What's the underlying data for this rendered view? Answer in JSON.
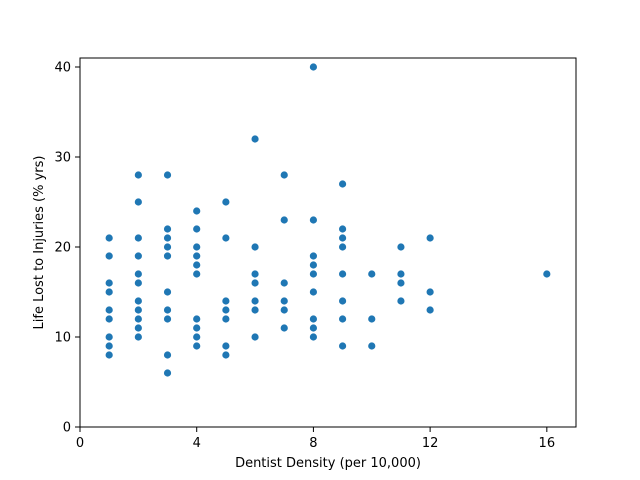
{
  "chart_data": {
    "type": "scatter",
    "title": "",
    "xlabel": "Dentist Density (per 10,000)",
    "ylabel": "Life Lost to Injuries (% yrs)",
    "xlim": [
      0,
      17
    ],
    "ylim": [
      0,
      41
    ],
    "xticks": [
      0,
      4,
      8,
      12,
      16
    ],
    "yticks": [
      0,
      10,
      20,
      30,
      40
    ],
    "grid": false,
    "legend": "none",
    "marker_color": "#1f77b4",
    "points": [
      {
        "x": 1,
        "y": 8
      },
      {
        "x": 1,
        "y": 9
      },
      {
        "x": 1,
        "y": 10
      },
      {
        "x": 1,
        "y": 12
      },
      {
        "x": 1,
        "y": 13
      },
      {
        "x": 1,
        "y": 15
      },
      {
        "x": 1,
        "y": 16
      },
      {
        "x": 1,
        "y": 19
      },
      {
        "x": 1,
        "y": 21
      },
      {
        "x": 2,
        "y": 10
      },
      {
        "x": 2,
        "y": 11
      },
      {
        "x": 2,
        "y": 12
      },
      {
        "x": 2,
        "y": 13
      },
      {
        "x": 2,
        "y": 14
      },
      {
        "x": 2,
        "y": 16
      },
      {
        "x": 2,
        "y": 17
      },
      {
        "x": 2,
        "y": 19
      },
      {
        "x": 2,
        "y": 21
      },
      {
        "x": 2,
        "y": 25
      },
      {
        "x": 2,
        "y": 28
      },
      {
        "x": 3,
        "y": 6
      },
      {
        "x": 3,
        "y": 8
      },
      {
        "x": 3,
        "y": 12
      },
      {
        "x": 3,
        "y": 13
      },
      {
        "x": 3,
        "y": 15
      },
      {
        "x": 3,
        "y": 19
      },
      {
        "x": 3,
        "y": 20
      },
      {
        "x": 3,
        "y": 21
      },
      {
        "x": 3,
        "y": 22
      },
      {
        "x": 3,
        "y": 28
      },
      {
        "x": 4,
        "y": 9
      },
      {
        "x": 4,
        "y": 10
      },
      {
        "x": 4,
        "y": 11
      },
      {
        "x": 4,
        "y": 12
      },
      {
        "x": 4,
        "y": 17
      },
      {
        "x": 4,
        "y": 18
      },
      {
        "x": 4,
        "y": 19
      },
      {
        "x": 4,
        "y": 20
      },
      {
        "x": 4,
        "y": 22
      },
      {
        "x": 4,
        "y": 24
      },
      {
        "x": 5,
        "y": 8
      },
      {
        "x": 5,
        "y": 9
      },
      {
        "x": 5,
        "y": 12
      },
      {
        "x": 5,
        "y": 13
      },
      {
        "x": 5,
        "y": 14
      },
      {
        "x": 5,
        "y": 21
      },
      {
        "x": 5,
        "y": 25
      },
      {
        "x": 6,
        "y": 10
      },
      {
        "x": 6,
        "y": 13
      },
      {
        "x": 6,
        "y": 14
      },
      {
        "x": 6,
        "y": 16
      },
      {
        "x": 6,
        "y": 17
      },
      {
        "x": 6,
        "y": 20
      },
      {
        "x": 6,
        "y": 32
      },
      {
        "x": 7,
        "y": 11
      },
      {
        "x": 7,
        "y": 13
      },
      {
        "x": 7,
        "y": 14
      },
      {
        "x": 7,
        "y": 16
      },
      {
        "x": 7,
        "y": 23
      },
      {
        "x": 7,
        "y": 28
      },
      {
        "x": 8,
        "y": 10
      },
      {
        "x": 8,
        "y": 11
      },
      {
        "x": 8,
        "y": 12
      },
      {
        "x": 8,
        "y": 15
      },
      {
        "x": 8,
        "y": 17
      },
      {
        "x": 8,
        "y": 18
      },
      {
        "x": 8,
        "y": 19
      },
      {
        "x": 8,
        "y": 23
      },
      {
        "x": 8,
        "y": 40
      },
      {
        "x": 9,
        "y": 9
      },
      {
        "x": 9,
        "y": 12
      },
      {
        "x": 9,
        "y": 14
      },
      {
        "x": 9,
        "y": 17
      },
      {
        "x": 9,
        "y": 20
      },
      {
        "x": 9,
        "y": 21
      },
      {
        "x": 9,
        "y": 22
      },
      {
        "x": 9,
        "y": 27
      },
      {
        "x": 10,
        "y": 9
      },
      {
        "x": 10,
        "y": 12
      },
      {
        "x": 10,
        "y": 17
      },
      {
        "x": 11,
        "y": 14
      },
      {
        "x": 11,
        "y": 16
      },
      {
        "x": 11,
        "y": 17
      },
      {
        "x": 11,
        "y": 20
      },
      {
        "x": 12,
        "y": 13
      },
      {
        "x": 12,
        "y": 15
      },
      {
        "x": 12,
        "y": 21
      },
      {
        "x": 16,
        "y": 17
      }
    ]
  }
}
